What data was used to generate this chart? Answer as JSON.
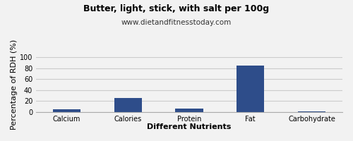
{
  "title": "Butter, light, stick, with salt per 100g",
  "subtitle": "www.dietandfitnesstoday.com",
  "xlabel": "Different Nutrients",
  "ylabel": "Percentage of RDH (%)",
  "categories": [
    "Calcium",
    "Calories",
    "Protein",
    "Fat",
    "Carbohydrate"
  ],
  "values": [
    5,
    25,
    6,
    84,
    1
  ],
  "bar_color": "#2e4d8a",
  "ylim": [
    0,
    100
  ],
  "yticks": [
    0,
    20,
    40,
    60,
    80,
    100
  ],
  "background_color": "#f2f2f2",
  "plot_bg_color": "#f2f2f2",
  "grid_color": "#cccccc",
  "title_fontsize": 9,
  "subtitle_fontsize": 7.5,
  "axis_label_fontsize": 8,
  "tick_fontsize": 7
}
